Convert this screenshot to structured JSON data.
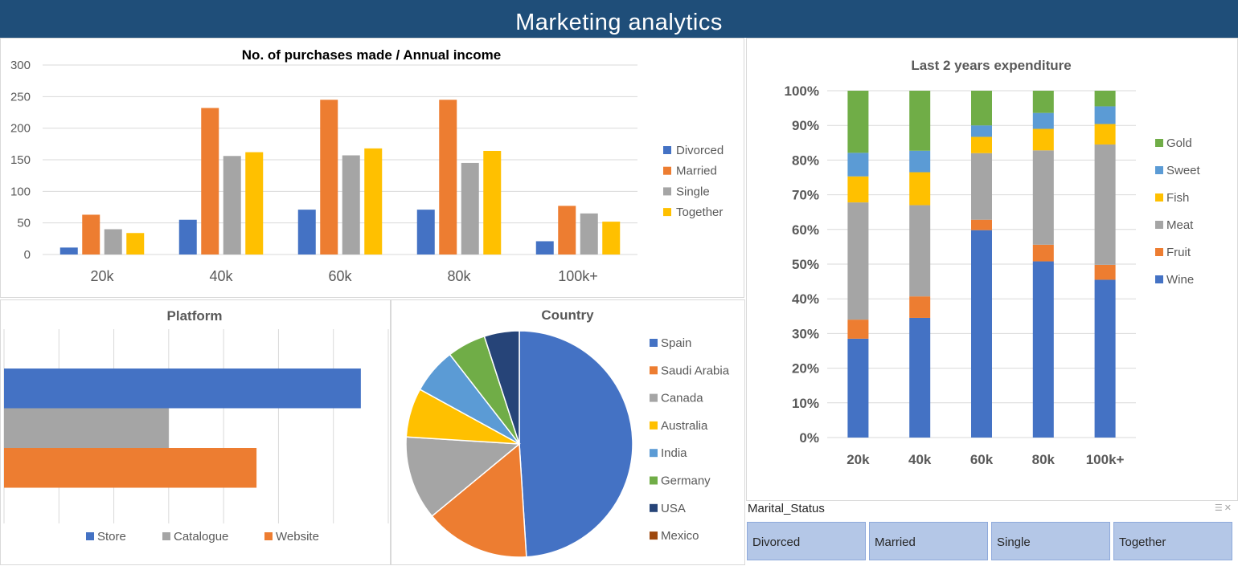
{
  "header": {
    "title": "Marketing  analytics"
  },
  "colors": {
    "blue": "#4472c4",
    "orange": "#ed7d31",
    "gray": "#a5a5a5",
    "yellow": "#ffc000",
    "lightblue": "#5b9bd5",
    "green": "#70ad47",
    "navy": "#264478",
    "brown": "#9e480e"
  },
  "chart_data": [
    {
      "type": "bar",
      "title": "No. of purchases made / Annual income",
      "categories": [
        "20k",
        "40k",
        "60k",
        "80k",
        "100k+"
      ],
      "yticks": [
        "0",
        "50",
        "100",
        "150",
        "200",
        "250",
        "300"
      ],
      "ylim": [
        0,
        300
      ],
      "series": [
        {
          "name": "Divorced",
          "color": "#4472c4",
          "values": [
            11,
            55,
            71,
            71,
            21
          ]
        },
        {
          "name": "Married",
          "color": "#ed7d31",
          "values": [
            63,
            232,
            245,
            245,
            77
          ]
        },
        {
          "name": "Single",
          "color": "#a5a5a5",
          "values": [
            40,
            156,
            157,
            145,
            65
          ]
        },
        {
          "name": "Together",
          "color": "#ffc000",
          "values": [
            34,
            162,
            168,
            164,
            52
          ]
        }
      ],
      "legend": "right"
    },
    {
      "type": "bar",
      "stacked": "percent",
      "title": "Last 2 years expenditure",
      "categories": [
        "20k",
        "40k",
        "60k",
        "80k",
        "100k+"
      ],
      "yticks": [
        "0%",
        "10%",
        "20%",
        "30%",
        "40%",
        "50%",
        "60%",
        "70%",
        "80%",
        "90%",
        "100%"
      ],
      "series": [
        {
          "name": "Wine",
          "color": "#4472c4",
          "values": [
            28.5,
            34.5,
            59.8,
            50.8,
            45.5
          ]
        },
        {
          "name": "Fruit",
          "color": "#ed7d31",
          "values": [
            5.5,
            6.2,
            3.0,
            4.8,
            4.3
          ]
        },
        {
          "name": "Meat",
          "color": "#a5a5a5",
          "values": [
            33.8,
            26.3,
            19.2,
            27.2,
            34.7
          ]
        },
        {
          "name": "Fish",
          "color": "#ffc000",
          "values": [
            7.5,
            9.5,
            4.7,
            6.2,
            5.9
          ]
        },
        {
          "name": "Sweet",
          "color": "#5b9bd5",
          "values": [
            6.8,
            6.2,
            3.3,
            4.6,
            5.1
          ]
        },
        {
          "name": "Gold",
          "color": "#70ad47",
          "values": [
            17.9,
            17.3,
            10.0,
            6.4,
            4.5
          ]
        }
      ],
      "legend": "right"
    },
    {
      "type": "bar",
      "orientation": "horizontal",
      "title": "Platform",
      "series": [
        {
          "name": "Store",
          "color": "#4472c4",
          "value": 13
        },
        {
          "name": "Catalogue",
          "color": "#a5a5a5",
          "value": 6
        },
        {
          "name": "Website",
          "color": "#ed7d31",
          "value": 9.2
        }
      ],
      "xlim": [
        0,
        14
      ],
      "legend": "bottom"
    },
    {
      "type": "pie",
      "title": "Country",
      "slices": [
        {
          "label": "Spain",
          "value": 49.0,
          "color": "#4472c4"
        },
        {
          "label": "Saudi Arabia",
          "value": 15.0,
          "color": "#ed7d31"
        },
        {
          "label": "Canada",
          "value": 12.0,
          "color": "#a5a5a5"
        },
        {
          "label": "Australia",
          "value": 7.0,
          "color": "#ffc000"
        },
        {
          "label": "India",
          "value": 6.5,
          "color": "#5b9bd5"
        },
        {
          "label": "Germany",
          "value": 5.5,
          "color": "#70ad47"
        },
        {
          "label": "USA",
          "value": 5.0,
          "color": "#264478"
        },
        {
          "label": "Mexico",
          "value": 0.0,
          "color": "#9e480e"
        }
      ],
      "legend": "right"
    }
  ],
  "slicer": {
    "title": "Marital_Status",
    "items": [
      "Divorced",
      "Married",
      "Single",
      "Together"
    ]
  }
}
